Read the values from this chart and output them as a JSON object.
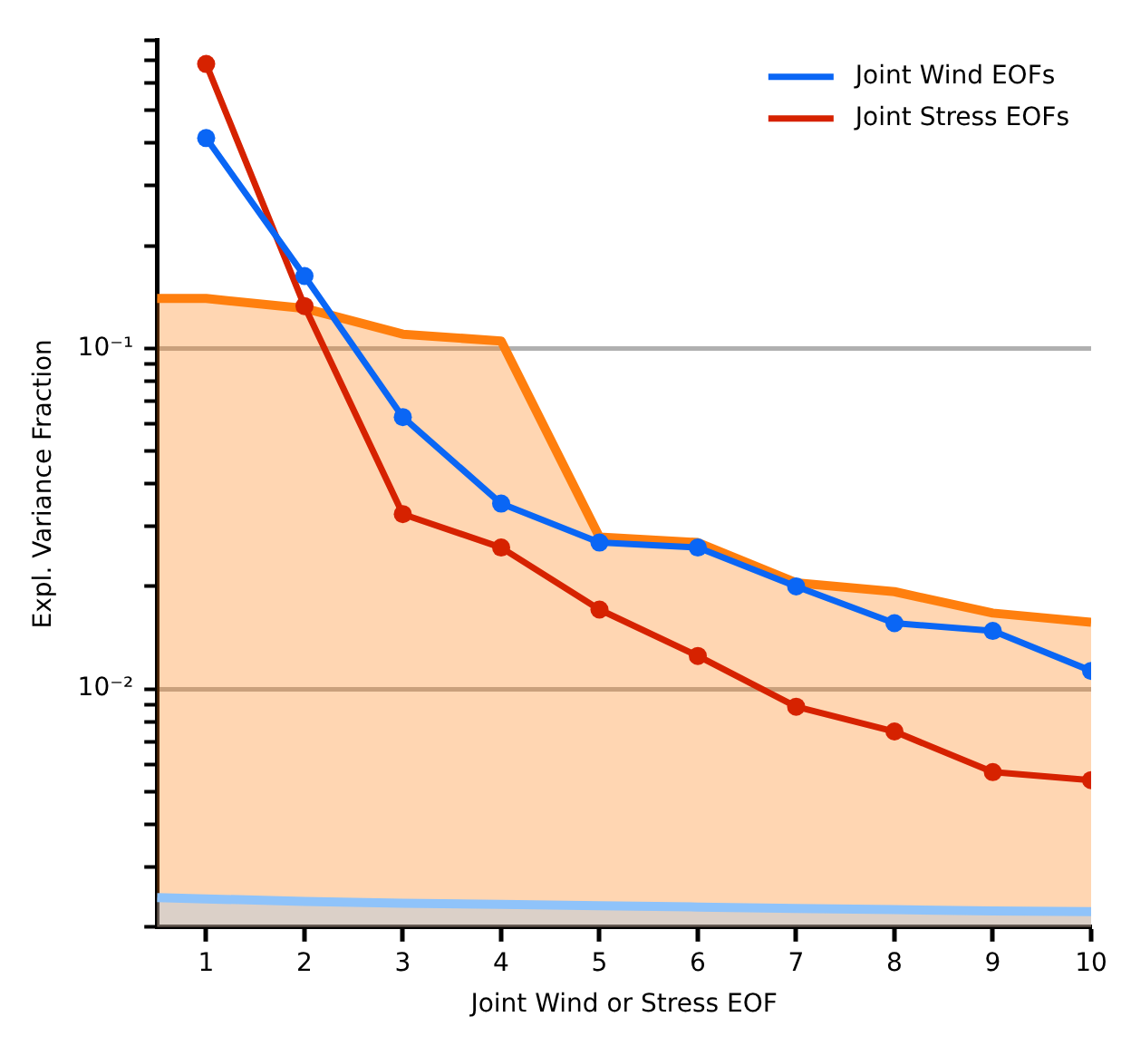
{
  "chart_data": {
    "type": "line",
    "xlabel": "Joint Wind or Stress EOF",
    "ylabel": "Expl. Variance Fraction",
    "log": "y",
    "grid": "y",
    "legend": "top right",
    "x": [
      1,
      2,
      3,
      4,
      5,
      6,
      7,
      8,
      9,
      10
    ],
    "xlim": [
      0.5,
      10
    ],
    "xticks": [
      1,
      2,
      3,
      4,
      5,
      6,
      7,
      8,
      9,
      10
    ],
    "ylim": [
      0.002,
      0.8
    ],
    "yticks": [
      {
        "value": 0.002,
        "label": null
      },
      {
        "value": 0.003,
        "label": null
      },
      {
        "value": 0.004,
        "label": null
      },
      {
        "value": 0.005,
        "label": null
      },
      {
        "value": 0.006,
        "label": null
      },
      {
        "value": 0.007,
        "label": null
      },
      {
        "value": 0.008,
        "label": null
      },
      {
        "value": 0.009,
        "label": null
      },
      {
        "value": 0.01,
        "label": "10⁻²"
      },
      {
        "value": 0.02,
        "label": null
      },
      {
        "value": 0.03,
        "label": null
      },
      {
        "value": 0.04,
        "label": null
      },
      {
        "value": 0.05,
        "label": null
      },
      {
        "value": 0.06,
        "label": null
      },
      {
        "value": 0.07,
        "label": null
      },
      {
        "value": 0.08,
        "label": null
      },
      {
        "value": 0.09,
        "label": null
      },
      {
        "value": 0.1,
        "label": "10⁻¹"
      },
      {
        "value": 0.2,
        "label": null
      },
      {
        "value": 0.3,
        "label": null
      },
      {
        "value": 0.4,
        "label": null
      },
      {
        "value": 0.5,
        "label": null
      },
      {
        "value": 0.6,
        "label": null
      },
      {
        "value": 0.7,
        "label": null
      },
      {
        "value": 0.8,
        "label": null
      }
    ],
    "series": [
      {
        "type": "area",
        "color": "#ff7f0e",
        "x": [
          0.5,
          1,
          2,
          3,
          4,
          5,
          6,
          7,
          8,
          9,
          10
        ],
        "values": [
          0.14,
          0.14,
          0.131,
          0.11,
          0.105,
          0.0279,
          0.0269,
          0.0205,
          0.0193,
          0.0167,
          0.0157
        ],
        "marker": "none"
      },
      {
        "type": "area",
        "color": "#8fc3fa",
        "x": [
          0.5,
          1,
          2,
          3,
          4,
          5,
          6,
          7,
          8,
          9,
          10
        ],
        "values": [
          0.00244,
          0.00242,
          0.00238,
          0.00235,
          0.00233,
          0.00231,
          0.00229,
          0.00227,
          0.00225,
          0.00223,
          0.00222
        ],
        "marker": "none"
      },
      {
        "name": "Joint Wind EOFs",
        "color": "#0a66f5",
        "values": [
          0.414,
          0.163,
          0.0628,
          0.035,
          0.0269,
          0.026,
          0.02,
          0.0156,
          0.0148,
          0.0113
        ],
        "marker": "circle"
      },
      {
        "name": "Joint Stress EOFs",
        "color": "#d62200",
        "values": [
          0.683,
          0.133,
          0.0326,
          0.026,
          0.0171,
          0.0125,
          0.00887,
          0.0075,
          0.0057,
          0.0054
        ],
        "marker": "circle"
      }
    ]
  }
}
